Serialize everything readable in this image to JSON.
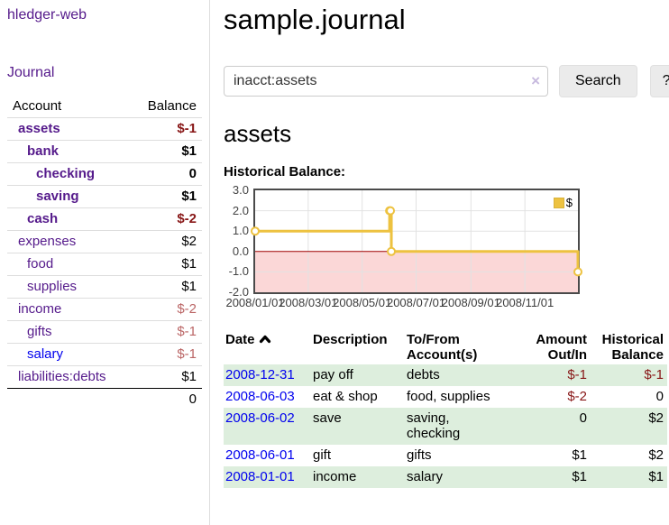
{
  "sidebar": {
    "brand": "hledger-web",
    "nav": [
      {
        "label": "Journal"
      }
    ],
    "balance_table": {
      "headers": [
        "Account",
        "Balance"
      ],
      "rows": [
        {
          "account": "assets",
          "depth": 1,
          "bold": true,
          "balance": "$-1",
          "negative": "strong"
        },
        {
          "account": "bank",
          "depth": 2,
          "bold": true,
          "balance": "$1"
        },
        {
          "account": "checking",
          "depth": 3,
          "bold": true,
          "balance": "0"
        },
        {
          "account": "saving",
          "depth": 3,
          "bold": true,
          "balance": "$1"
        },
        {
          "account": "cash",
          "depth": 2,
          "bold": true,
          "balance": "$-2",
          "negative": "strong"
        },
        {
          "account": "expenses",
          "depth": 1,
          "bold": false,
          "balance": "$2"
        },
        {
          "account": "food",
          "depth": 2,
          "bold": false,
          "balance": "$1"
        },
        {
          "account": "supplies",
          "depth": 2,
          "bold": false,
          "balance": "$1"
        },
        {
          "account": "income",
          "depth": 1,
          "bold": false,
          "balance": "$-2",
          "negative": "weak"
        },
        {
          "account": "gifts",
          "depth": 2,
          "bold": false,
          "balance": "$-1",
          "negative": "weak"
        },
        {
          "account": "salary",
          "depth": 2,
          "bold": false,
          "balance": "$-1",
          "negative": "weak",
          "link": "unvisited"
        },
        {
          "account": "liabilities:debts",
          "depth": 1,
          "bold": false,
          "balance": "$1"
        }
      ],
      "total": "0"
    }
  },
  "header": {
    "title": "sample.journal"
  },
  "search": {
    "query": "inacct:assets",
    "clear_icon": "×",
    "search_label": "Search",
    "help_label": "?"
  },
  "account_page": {
    "title": "assets",
    "chart_label": "Historical Balance:"
  },
  "chart_data": {
    "type": "line",
    "style": "step",
    "title": "Historical Balance",
    "legend": "$",
    "legend_position": "top-right",
    "x_range": [
      "2008-01-01",
      "2008-12-31"
    ],
    "ylim": [
      -2,
      3
    ],
    "y_ticks": [
      "3.0",
      "2.0",
      "1.0",
      "0.0",
      "-1.0",
      "-2.0"
    ],
    "x_ticks": [
      "2008/01/01",
      "2008/03/01",
      "2008/05/01",
      "2008/07/01",
      "2008/09/01",
      "2008/11/01"
    ],
    "grid": true,
    "series": [
      {
        "name": "$",
        "color": "#edc240",
        "points": [
          {
            "date": "2008-01-01",
            "value": 1.0
          },
          {
            "date": "2008-06-01",
            "value": 2.0
          },
          {
            "date": "2008-06-02",
            "value": 2.0
          },
          {
            "date": "2008-06-03",
            "value": 0.0
          },
          {
            "date": "2008-12-31",
            "value": -1.0
          }
        ]
      }
    ],
    "negative_region_color": "#fbd7d7",
    "zero_line_color": "#a00000"
  },
  "register": {
    "headers": {
      "date": "Date",
      "description": "Description",
      "accounts": "To/From Account(s)",
      "amount": "Amount Out/In",
      "balance": "Historical Balance"
    },
    "sort": {
      "column": "date",
      "direction": "ascending"
    },
    "rows": [
      {
        "date": "2008-12-31",
        "description": "pay off",
        "accounts": "debts",
        "amount": "$-1",
        "amount_negative": true,
        "balance": "$-1",
        "balance_negative": true,
        "shaded": true
      },
      {
        "date": "2008-06-03",
        "description": "eat & shop",
        "accounts": "food, supplies",
        "amount": "$-2",
        "amount_negative": true,
        "balance": "0",
        "balance_negative": false,
        "shaded": false
      },
      {
        "date": "2008-06-02",
        "description": "save",
        "accounts": "saving,\nchecking",
        "amount": "0",
        "amount_negative": false,
        "balance": "$2",
        "balance_negative": false,
        "shaded": true
      },
      {
        "date": "2008-06-01",
        "description": "gift",
        "accounts": "gifts",
        "amount": "$1",
        "amount_negative": false,
        "balance": "$2",
        "balance_negative": false,
        "shaded": false
      },
      {
        "date": "2008-01-01",
        "description": "income",
        "accounts": "salary",
        "amount": "$1",
        "amount_negative": false,
        "balance": "$1",
        "balance_negative": false,
        "shaded": true
      }
    ]
  },
  "colors": {
    "link_visited_purple": "#551a8b",
    "link_blue": "#0000ee",
    "negative_strong": "#881717",
    "negative_weak": "#bb6666",
    "row_shade_green": "#ddeedd",
    "chart_line": "#edc240",
    "chart_negative_bg": "#fbd7d7",
    "chart_zero_line": "#a00000",
    "button_bg": "#ebebeb"
  }
}
